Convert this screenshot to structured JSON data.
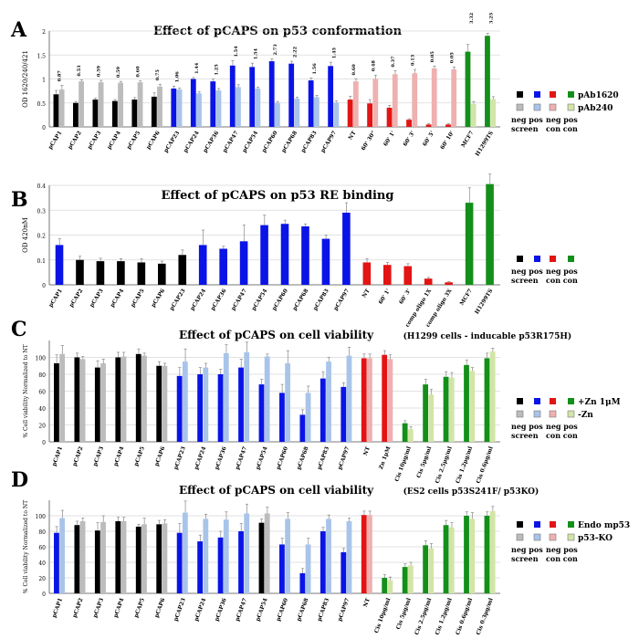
{
  "colors": {
    "black": "#000000",
    "blue": "#0a14e6",
    "red": "#e31414",
    "green": "#138f1a",
    "gray": "#bcbcbc",
    "lightblue": "#a9c4ea",
    "pink": "#efb0b0",
    "lightgreen": "#d2e5a6"
  },
  "chart_data": [
    {
      "panel": "A",
      "type": "bar",
      "title": "Effect of pCAPS on p53 conformation",
      "ylabel": "OD 1620/240/421",
      "ylim": [
        0,
        2
      ],
      "yticks": [
        0,
        0.5,
        1,
        1.5,
        2
      ],
      "categories": [
        "pCAP1",
        "pCAP2",
        "pCAP3",
        "pCAP4",
        "pCAP5",
        "pCAP6",
        "pCAP23",
        "pCAP24",
        "pCAP36",
        "pCAP47",
        "pCAP54",
        "pCAP60",
        "pCAP68",
        "pCAP83",
        "pCAP97",
        "NT",
        "60' 30\"",
        "60' 1'",
        "60' 3'",
        "60' 5'",
        "60' 10'",
        "MCF7",
        "H1299TS"
      ],
      "groups": [
        "k",
        "k",
        "k",
        "k",
        "k",
        "k",
        "b",
        "b",
        "b",
        "b",
        "b",
        "b",
        "b",
        "b",
        "b",
        "r",
        "r",
        "r",
        "r",
        "r",
        "r",
        "g",
        "g"
      ],
      "series": [
        {
          "name": "pAb1620",
          "values": [
            0.68,
            0.5,
            0.57,
            0.54,
            0.57,
            0.63,
            0.8,
            1.0,
            0.95,
            1.28,
            1.25,
            1.37,
            1.32,
            0.97,
            1.27,
            0.57,
            0.49,
            0.4,
            0.15,
            0.05,
            0.05,
            1.57,
            1.9
          ]
        },
        {
          "name": "pAb240",
          "values": [
            0.78,
            0.95,
            0.93,
            0.92,
            0.93,
            0.84,
            0.78,
            0.7,
            0.76,
            0.83,
            0.8,
            0.5,
            0.59,
            0.62,
            0.51,
            0.95,
            1.0,
            1.1,
            1.12,
            1.22,
            1.2,
            0.48,
            0.58
          ]
        }
      ],
      "errors": [
        [
          0.08,
          0.03,
          0.03,
          0.03,
          0.04,
          0.08,
          0.05,
          0.03,
          0.05,
          0.1,
          0.08,
          0.05,
          0.05,
          0.05,
          0.08,
          0.07,
          0.08,
          0.05,
          0.02,
          0.02,
          0.02,
          0.15,
          0.05
        ],
        [
          0.09,
          0.03,
          0.04,
          0.03,
          0.03,
          0.05,
          0.03,
          0.03,
          0.04,
          0.05,
          0.03,
          0.03,
          0.03,
          0.04,
          0.03,
          0.05,
          0.08,
          0.07,
          0.08,
          0.05,
          0.05,
          0.05,
          0.05
        ]
      ],
      "ratios": [
        "0.87",
        "0.53",
        "0.59",
        "0.59",
        "0.60",
        "0.75",
        "1.06",
        "1.44",
        "1.25",
        "1.54",
        "1.54",
        "2.73",
        "2.22",
        "1.56",
        "1.45",
        "0.60",
        "0.48",
        "0.37",
        "0.13",
        "0.05",
        "0.05",
        "3.32",
        "3.25"
      ],
      "legend": {
        "labels": [
          "pAb1620",
          "pAb240"
        ],
        "captions": [
          "neg pos",
          "screen",
          "neg pos",
          "con con"
        ]
      }
    },
    {
      "panel": "B",
      "type": "bar",
      "title": "Effect of pCAPS on p53 RE binding",
      "ylabel": "OD 420nM",
      "ylim": [
        0,
        0.4
      ],
      "yticks": [
        0,
        0.1,
        0.2,
        0.3,
        0.4
      ],
      "categories": [
        "pCAP1",
        "pCAP2",
        "pCAP3",
        "pCAP4",
        "pCAP5",
        "pCAP6",
        "pCAP23",
        "pCAP24",
        "pCAP36",
        "pCAP47",
        "pCAP54",
        "pCAP60",
        "pCAP68",
        "pCAP83",
        "pCAP97",
        "NT",
        "60' 1'",
        "60' 3'",
        "comp oligo 1X",
        "comp oligo 3X",
        "MCF7",
        "H1299TS"
      ],
      "groups": [
        "b",
        "k",
        "k",
        "k",
        "k",
        "k",
        "k",
        "b",
        "b",
        "b",
        "b",
        "b",
        "b",
        "b",
        "b",
        "r",
        "r",
        "r",
        "r",
        "r",
        "g",
        "g"
      ],
      "series": [
        {
          "name": "OD 420nM",
          "values": [
            0.16,
            0.1,
            0.095,
            0.095,
            0.09,
            0.085,
            0.12,
            0.16,
            0.145,
            0.175,
            0.24,
            0.245,
            0.235,
            0.185,
            0.29,
            0.09,
            0.08,
            0.075,
            0.025,
            0.01,
            0.33,
            0.405
          ]
        }
      ],
      "errors": [
        [
          0.025,
          0.015,
          0.012,
          0.01,
          0.015,
          0.01,
          0.02,
          0.06,
          0.01,
          0.065,
          0.04,
          0.015,
          0.01,
          0.015,
          0.04,
          0.015,
          0.01,
          0.01,
          0.005,
          0.003,
          0.06,
          0.04
        ]
      ],
      "legend": {
        "labels": [],
        "captions": [
          "neg pos",
          "screen",
          "neg pos",
          "con con"
        ]
      }
    },
    {
      "panel": "C",
      "type": "bar",
      "title": "Effect of pCAPS on cell viability",
      "subtitle": "(H1299 cells - inducable p53R175H)",
      "ylabel": "% Cell viability Normalized to NT",
      "ylim": [
        0,
        120
      ],
      "yticks": [
        0,
        20,
        40,
        60,
        80,
        100
      ],
      "categories": [
        "pCAP1",
        "pCAP2",
        "pCAP3",
        "pCAP4",
        "pCAP5",
        "pCAP6",
        "pCAP23",
        "pCAP24",
        "pCAP36",
        "pCAP47",
        "pCAP54",
        "pCAP60",
        "pCAP68",
        "pCAP83",
        "pCAP97",
        "NT",
        "Zn 1μM",
        "Cis 10μg/ml",
        "Cis 5μg/ml",
        "Cis 2.5μg/ml",
        "Cis 1.2μg/ml",
        "Cis 0.6μg/ml"
      ],
      "groups": [
        "k",
        "k",
        "k",
        "k",
        "k",
        "k",
        "b",
        "b",
        "b",
        "b",
        "b",
        "b",
        "b",
        "b",
        "b",
        "r",
        "r",
        "g",
        "g",
        "g",
        "g",
        "g"
      ],
      "series": [
        {
          "name": "+Zn 1μM",
          "values": [
            93,
            100,
            88,
            100,
            104,
            90,
            78,
            80,
            80,
            88,
            68,
            58,
            32,
            75,
            65,
            99,
            103,
            22,
            68,
            77,
            91,
            99
          ]
        },
        {
          "name": "-Zn",
          "values": [
            104,
            98,
            93,
            101,
            102,
            90,
            95,
            88,
            105,
            106,
            101,
            93,
            58,
            95,
            102,
            99,
            98,
            15,
            56,
            76,
            84,
            107
          ]
        }
      ],
      "errors": [
        [
          10,
          5,
          8,
          6,
          6,
          5,
          10,
          8,
          6,
          10,
          6,
          10,
          6,
          8,
          5,
          5,
          5,
          3,
          6,
          6,
          6,
          6
        ],
        [
          10,
          3,
          5,
          5,
          3,
          3,
          15,
          5,
          10,
          12,
          3,
          15,
          8,
          5,
          10,
          5,
          5,
          3,
          6,
          6,
          4,
          4
        ]
      ],
      "legend": {
        "labels": [
          "+Zn 1μM",
          "-Zn"
        ],
        "captions": [
          "neg pos",
          "screen",
          "neg pos",
          "con con"
        ]
      }
    },
    {
      "panel": "D",
      "type": "bar",
      "title": "Effect of pCAPS on cell viability",
      "subtitle": "(ES2 cells p53S241F/ p53KO)",
      "ylabel": "% Cell viability Normalized to NT",
      "ylim": [
        0,
        120
      ],
      "yticks": [
        0,
        20,
        40,
        60,
        80,
        100
      ],
      "categories": [
        "pCAP1",
        "pCAP2",
        "pCAP3",
        "pCAP4",
        "pCAP5",
        "pCAP6",
        "pCAP23",
        "pCAP24",
        "pCAP36",
        "pCAP47",
        "pCAP54",
        "pCAP60",
        "pCAP68",
        "pCAP83",
        "pCAP97",
        "NT",
        "Cis 10μg/ml",
        "Cis 5μg/ml",
        "Cis 2.5μg/ml",
        "Cis 1.2μg/ml",
        "Cis 0.6μg/ml",
        "Cis 0.3μg/ml"
      ],
      "groups": [
        "b",
        "k",
        "k",
        "k",
        "k",
        "k",
        "b",
        "b",
        "b",
        "b",
        "k",
        "b",
        "b",
        "b",
        "b",
        "r",
        "g",
        "g",
        "g",
        "g",
        "g",
        "g"
      ],
      "series": [
        {
          "name": "Endo mp53",
          "values": [
            78,
            88,
            81,
            93,
            86,
            89,
            78,
            67,
            72,
            80,
            91,
            63,
            26,
            80,
            53,
            101,
            20,
            34,
            62,
            88,
            100,
            100
          ]
        },
        {
          "name": "p53-KO",
          "values": [
            97,
            93,
            92,
            93,
            89,
            90,
            104,
            96,
            95,
            103,
            103,
            96,
            63,
            96,
            93,
            101,
            17,
            36,
            58,
            85,
            96,
            106
          ]
        }
      ],
      "errors": [
        [
          8,
          5,
          10,
          5,
          3,
          5,
          12,
          8,
          8,
          10,
          5,
          8,
          6,
          5,
          5,
          5,
          4,
          4,
          6,
          6,
          5,
          5
        ],
        [
          10,
          4,
          8,
          5,
          8,
          5,
          15,
          6,
          10,
          12,
          8,
          8,
          8,
          5,
          4,
          5,
          4,
          4,
          6,
          6,
          8,
          6
        ]
      ],
      "legend": {
        "labels": [
          "Endo mp53",
          "p53-KO"
        ],
        "captions": [
          "neg pos",
          "screen",
          "neg pos",
          "con con"
        ]
      }
    }
  ]
}
